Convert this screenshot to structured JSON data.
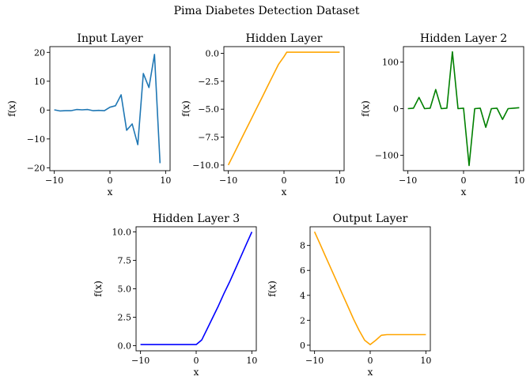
{
  "figure": {
    "title": "Pima Diabetes Detection Dataset"
  },
  "chart_data": [
    {
      "type": "line",
      "title": "Input Layer",
      "xlabel": "x",
      "ylabel": "f(x)",
      "xlim": [
        -10.8,
        10.8
      ],
      "ylim": [
        -21,
        22
      ],
      "xticks": [
        -10,
        0,
        10
      ],
      "yticks": [
        20,
        10,
        0,
        -10,
        -20
      ],
      "ytick_labels": [
        "20",
        "10",
        "0",
        "−10",
        "−20"
      ],
      "color": "#1f77b4",
      "x": [
        -10,
        -9,
        -8,
        -7,
        -6,
        -5,
        -4,
        -3,
        -2,
        -1,
        0,
        1,
        2,
        3,
        4,
        5,
        6,
        7,
        8,
        9,
        10
      ],
      "y": [
        0.1,
        -0.3,
        -0.2,
        -0.2,
        0.2,
        0.1,
        0.2,
        -0.2,
        -0.1,
        -0.2,
        1.0,
        1.5,
        5.3,
        -7.0,
        -4.8,
        -12.0,
        12.7,
        7.8,
        19.3,
        -18.4,
        null
      ]
    },
    {
      "type": "line",
      "title": "Hidden Layer",
      "xlabel": "x",
      "ylabel": "f(x)",
      "xlim": [
        -10.8,
        10.8
      ],
      "ylim": [
        -10.5,
        0.6
      ],
      "xticks": [
        -10,
        0,
        10
      ],
      "yticks": [
        0.0,
        -2.5,
        -5.0,
        -7.5,
        -10.0
      ],
      "ytick_labels": [
        "0.0",
        "−2.5",
        "−5.0",
        "−7.5",
        "−10.0"
      ],
      "color": "#ffa500",
      "x": [
        -10,
        -9,
        -8,
        -7,
        -6,
        -5,
        -4,
        -3,
        -2,
        -1,
        0,
        0.5,
        1,
        2,
        3,
        4,
        5,
        6,
        7,
        8,
        9,
        10
      ],
      "y": [
        -10,
        -9,
        -8,
        -7,
        -6,
        -5,
        -4,
        -3,
        -2,
        -1,
        -0.3,
        0.1,
        0.1,
        0.1,
        0.1,
        0.1,
        0.1,
        0.1,
        0.1,
        0.1,
        0.1,
        0.1
      ]
    },
    {
      "type": "line",
      "title": "Hidden Layer 2",
      "xlabel": "x",
      "ylabel": "f(x)",
      "xlim": [
        -10.8,
        10.8
      ],
      "ylim": [
        -133,
        133
      ],
      "xticks": [
        -10,
        0,
        10
      ],
      "yticks": [
        100,
        0,
        -100
      ],
      "ytick_labels": [
        "100",
        "0",
        "−100"
      ],
      "color": "#008000",
      "x": [
        -10,
        -9,
        -8,
        -7,
        -6,
        -5,
        -4,
        -3,
        -2,
        -1,
        0,
        1,
        2,
        3,
        4,
        5,
        6,
        7,
        8,
        9,
        10
      ],
      "y": [
        0,
        1,
        24,
        0,
        1,
        41,
        0,
        1,
        122,
        0,
        1,
        -122,
        0,
        1,
        -40,
        0,
        1,
        -23,
        0,
        1,
        2
      ]
    },
    {
      "type": "line",
      "title": "Hidden Layer 3",
      "xlabel": "x",
      "ylabel": "f(x)",
      "xlim": [
        -10.8,
        10.8
      ],
      "ylim": [
        -0.45,
        10.45
      ],
      "xticks": [
        -10,
        0,
        10
      ],
      "yticks": [
        10.0,
        7.5,
        5.0,
        2.5,
        0.0
      ],
      "ytick_labels": [
        "10.0",
        "7.5",
        "5.0",
        "2.5",
        "0.0"
      ],
      "color": "#0000ff",
      "x": [
        -10,
        -9,
        -8,
        -7,
        -6,
        -5,
        -4,
        -3,
        -2,
        -1,
        0,
        1,
        2,
        3,
        4,
        5,
        6,
        7,
        8,
        9,
        10
      ],
      "y": [
        0.1,
        0.1,
        0.1,
        0.1,
        0.1,
        0.1,
        0.1,
        0.1,
        0.1,
        0.1,
        0.1,
        0.5,
        1.5,
        2.5,
        3.5,
        4.6,
        5.6,
        6.7,
        7.8,
        8.9,
        10
      ]
    },
    {
      "type": "line",
      "title": "Output Layer",
      "xlabel": "x",
      "ylabel": "f(x)",
      "xlim": [
        -10.8,
        10.8
      ],
      "ylim": [
        -0.45,
        9.5
      ],
      "xticks": [
        -10,
        0,
        10
      ],
      "yticks": [
        8,
        6,
        4,
        2,
        0
      ],
      "ytick_labels": [
        "8",
        "6",
        "4",
        "2",
        "0"
      ],
      "color": "#ffa500",
      "x": [
        -10,
        -9,
        -8,
        -7,
        -6,
        -5,
        -4,
        -3,
        -2,
        -1,
        0,
        1,
        2,
        3,
        4,
        5,
        6,
        7,
        8,
        9,
        10
      ],
      "y": [
        9.1,
        8.1,
        7.1,
        6.1,
        5.1,
        4.1,
        3.1,
        2.1,
        1.2,
        0.4,
        0.05,
        0.4,
        0.8,
        0.85,
        0.85,
        0.85,
        0.85,
        0.85,
        0.85,
        0.85,
        0.85
      ]
    }
  ]
}
